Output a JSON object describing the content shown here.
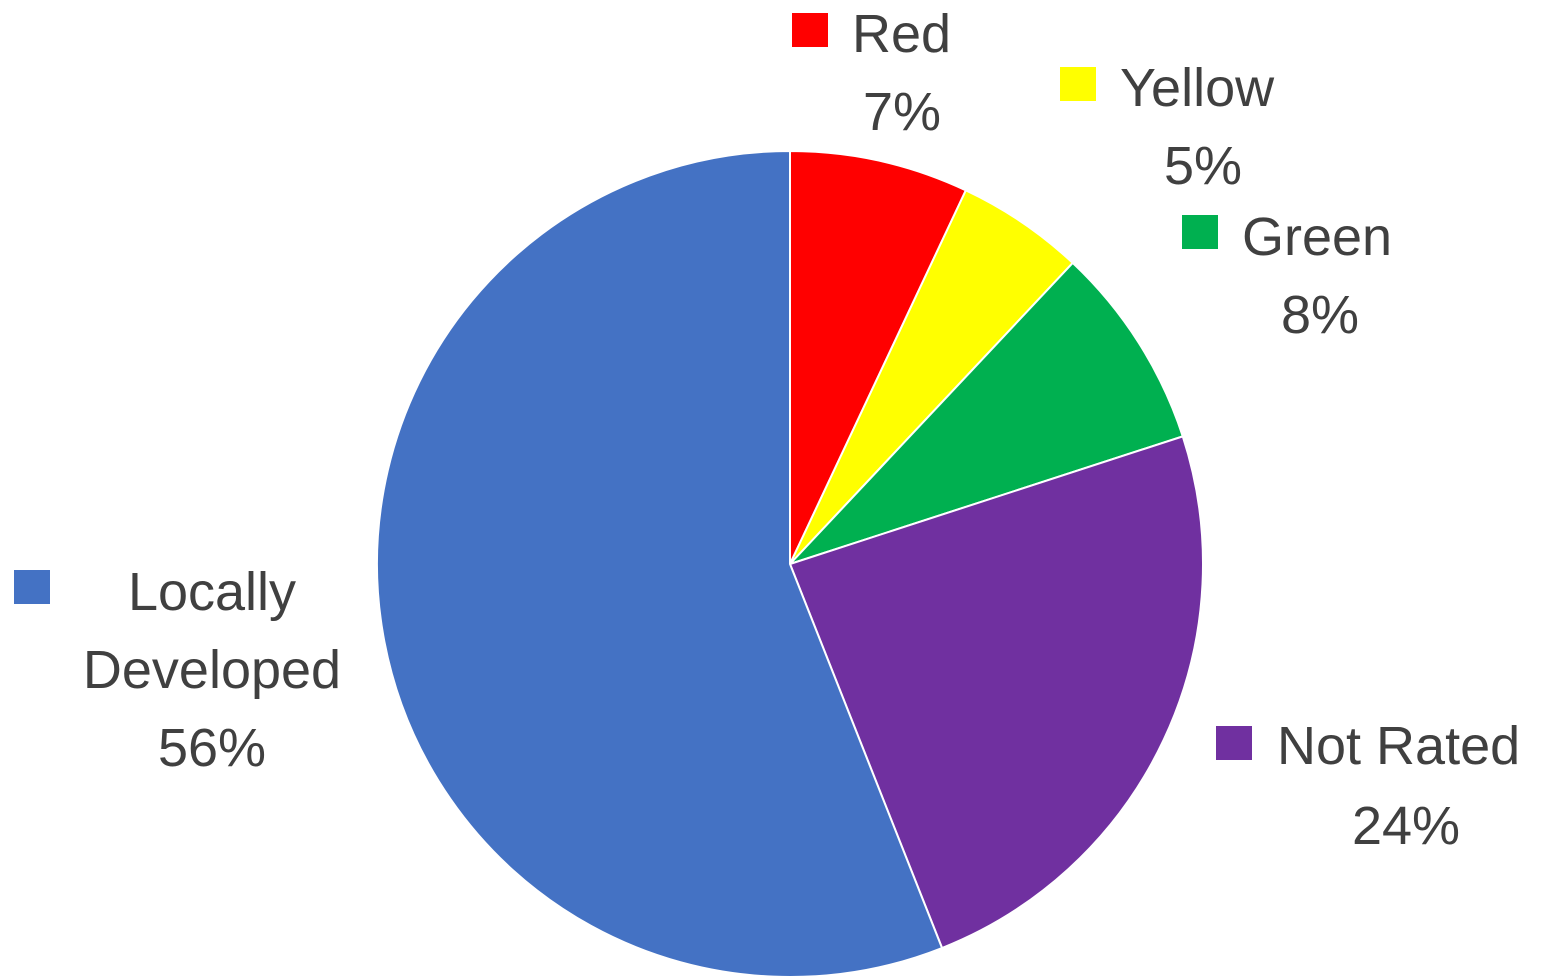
{
  "chart_data": {
    "type": "pie",
    "title": "",
    "start_angle_deg": 0,
    "direction": "clockwise",
    "slices": [
      {
        "label": "Red",
        "value_label": "7%",
        "value": 7,
        "color": "#ff0000"
      },
      {
        "label": "Yellow",
        "value_label": "5%",
        "value": 5,
        "color": "#ffff00"
      },
      {
        "label": "Green",
        "value_label": "8%",
        "value": 8,
        "color": "#00b050"
      },
      {
        "label": "Not Rated",
        "value_label": "24%",
        "value": 24,
        "color": "#7030a0"
      },
      {
        "label": "Locally Developed",
        "label_lines": [
          "Locally",
          "Developed"
        ],
        "value_label": "56%",
        "value": 56,
        "color": "#4472c4"
      }
    ]
  }
}
